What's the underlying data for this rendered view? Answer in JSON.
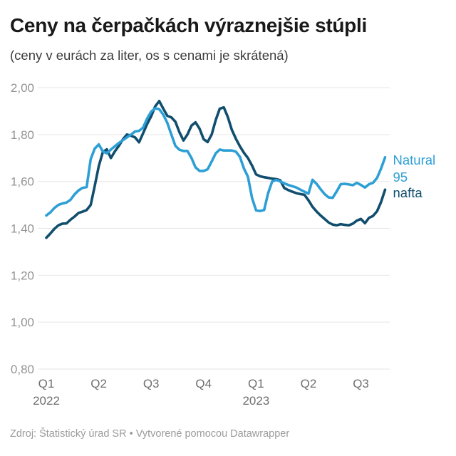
{
  "header": {
    "title": "Ceny na čerpačkách výraznejšie stúpli",
    "subtitle": "(ceny v eurách za liter, os s cenami je skrátená)"
  },
  "footer": {
    "source": "Zdroj: Štatistický úrad SR • Vytvorené pomocou Datawrapper"
  },
  "colors": {
    "natural95": "#2d9fd5",
    "nafta": "#114e6e",
    "grid": "#e6e6e6",
    "y_axis_text": "#939393",
    "x_axis_text": "#6f6f6f",
    "title_text": "#191919",
    "subtitle_text": "#3c3c3c",
    "footer_text": "#9b9b9b",
    "background": "#ffffff"
  },
  "chart_data": {
    "type": "line",
    "title": "Ceny na čerpačkách výraznejšie stúpli",
    "subtitle": "(ceny v eurách za liter, os s cenami je skrátená)",
    "unit": "EUR za liter",
    "ylim": [
      0.8,
      2.0
    ],
    "grid": "horizontal",
    "legend_position": "right-end-of-line",
    "y_ticks": [
      {
        "value": 2.0,
        "label": "2,00"
      },
      {
        "value": 1.8,
        "label": "1,80"
      },
      {
        "value": 1.6,
        "label": "1,60"
      },
      {
        "value": 1.4,
        "label": "1,40"
      },
      {
        "value": 1.2,
        "label": "1,20"
      },
      {
        "value": 1.0,
        "label": "1,00"
      },
      {
        "value": 0.8,
        "label": "0,80"
      }
    ],
    "x_ticks": [
      {
        "index": 0,
        "label": "Q1",
        "year": "2022"
      },
      {
        "index": 13,
        "label": "Q2",
        "year": ""
      },
      {
        "index": 26,
        "label": "Q3",
        "year": ""
      },
      {
        "index": 39,
        "label": "Q4",
        "year": ""
      },
      {
        "index": 52,
        "label": "Q1",
        "year": "2023"
      },
      {
        "index": 65,
        "label": "Q2",
        "year": ""
      },
      {
        "index": 78,
        "label": "Q3",
        "year": ""
      }
    ],
    "x_description": "weekly values, Q1 2022 through Q3 2023",
    "series": [
      {
        "name": "nafta",
        "label_lines": [
          "nafta"
        ],
        "color": "#114e6e",
        "values": [
          1.36,
          1.378,
          1.398,
          1.413,
          1.42,
          1.421,
          1.437,
          1.45,
          1.466,
          1.471,
          1.478,
          1.5,
          1.58,
          1.665,
          1.725,
          1.737,
          1.7,
          1.728,
          1.752,
          1.78,
          1.8,
          1.795,
          1.788,
          1.767,
          1.806,
          1.845,
          1.878,
          1.92,
          1.943,
          1.91,
          1.88,
          1.873,
          1.855,
          1.81,
          1.775,
          1.8,
          1.838,
          1.852,
          1.825,
          1.78,
          1.768,
          1.8,
          1.862,
          1.91,
          1.916,
          1.875,
          1.82,
          1.782,
          1.75,
          1.722,
          1.7,
          1.668,
          1.63,
          1.622,
          1.618,
          1.615,
          1.612,
          1.61,
          1.605,
          1.572,
          1.563,
          1.556,
          1.55,
          1.546,
          1.543,
          1.52,
          1.492,
          1.472,
          1.455,
          1.44,
          1.425,
          1.416,
          1.413,
          1.418,
          1.415,
          1.413,
          1.42,
          1.433,
          1.44,
          1.422,
          1.445,
          1.453,
          1.473,
          1.512,
          1.565
        ]
      },
      {
        "name": "Natural 95",
        "label_lines": [
          "Natural",
          "95"
        ],
        "color": "#2d9fd5",
        "values": [
          1.455,
          1.468,
          1.487,
          1.5,
          1.506,
          1.51,
          1.522,
          1.545,
          1.562,
          1.573,
          1.576,
          1.695,
          1.74,
          1.758,
          1.728,
          1.72,
          1.736,
          1.75,
          1.764,
          1.776,
          1.788,
          1.8,
          1.813,
          1.816,
          1.83,
          1.868,
          1.898,
          1.912,
          1.908,
          1.885,
          1.85,
          1.8,
          1.752,
          1.735,
          1.73,
          1.73,
          1.7,
          1.66,
          1.645,
          1.645,
          1.652,
          1.685,
          1.72,
          1.736,
          1.732,
          1.732,
          1.732,
          1.727,
          1.705,
          1.655,
          1.62,
          1.53,
          1.477,
          1.474,
          1.478,
          1.55,
          1.6,
          1.607,
          1.6,
          1.592,
          1.585,
          1.58,
          1.574,
          1.565,
          1.556,
          1.548,
          1.607,
          1.59,
          1.567,
          1.546,
          1.532,
          1.53,
          1.558,
          1.588,
          1.59,
          1.587,
          1.584,
          1.594,
          1.585,
          1.574,
          1.588,
          1.594,
          1.615,
          1.655,
          1.703
        ]
      }
    ]
  }
}
